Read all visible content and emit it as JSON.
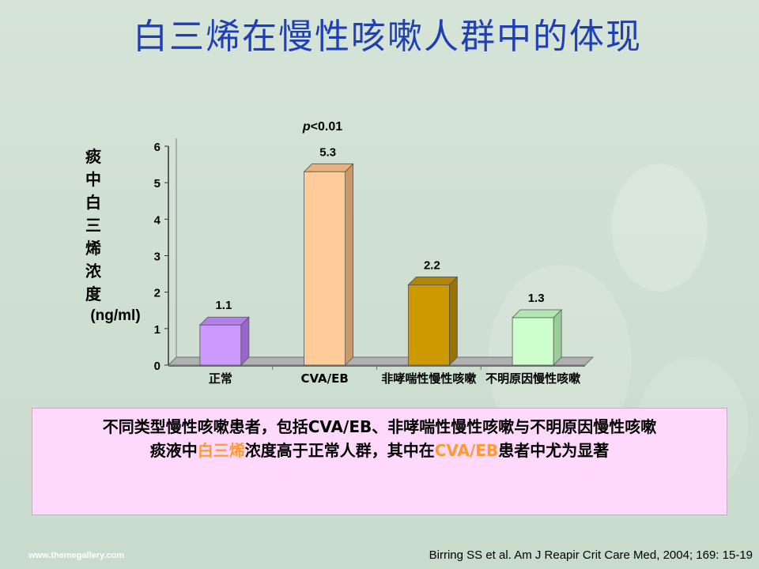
{
  "slide": {
    "title": "白三烯在慢性咳嗽人群中的体现",
    "summary_line1": "不同类型慢性咳嗽患者，包括CVA/EB、非哮喘性慢性咳嗽与不明原因慢性咳嗽",
    "summary_line2_pre": "痰液中",
    "summary_line2_hl1": "白三烯",
    "summary_line2_mid": "浓度高于正常人群，其中在",
    "summary_line2_hl2": "CVA/EB",
    "summary_line2_post": "患者中尤为显著",
    "footer_left": "www.themegallery.com",
    "footer_right": "Birring SS et al. Am J Reapir Crit Care Med, 2004; 169: 15-19"
  },
  "chart_data": {
    "type": "bar",
    "categories": [
      "正常",
      "CVA/EB",
      "非哮喘性慢性咳嗽",
      "不明原因慢性咳嗽"
    ],
    "values": [
      1.1,
      5.3,
      2.2,
      1.3
    ],
    "data_labels": [
      "1.1",
      "5.3",
      "2.2",
      "1.3"
    ],
    "ylabel_chars": [
      "痰",
      "中",
      "白",
      "三",
      "烯",
      "浓",
      "度"
    ],
    "ylabel_unit": "(ng/ml)",
    "ylim": [
      0,
      6
    ],
    "yticks": [
      0,
      1,
      2,
      3,
      4,
      5,
      6
    ],
    "annotation_p": "p",
    "annotation_rest": "<0.01",
    "colors": [
      "#cc99ff",
      "#ffcc99",
      "#cc9900",
      "#ccffcc"
    ],
    "side_colors": [
      "#9966cc",
      "#cc9966",
      "#997300",
      "#99cc99"
    ],
    "top_colors": [
      "#b380e6",
      "#e6b380",
      "#b38600",
      "#b3e6b3"
    ],
    "grid": false,
    "legend": "none"
  }
}
